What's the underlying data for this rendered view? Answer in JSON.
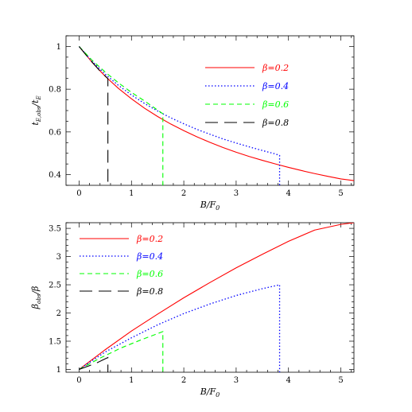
{
  "chart_data": [
    {
      "type": "line",
      "xlabel": "B/F",
      "xlabel_sub": "0",
      "ylabel": "t",
      "ylabel_sub": "E,obs",
      "ylabel_mid": "/t",
      "ylabel_sub2": "E",
      "xlim": [
        -0.25,
        5.25
      ],
      "ylim": [
        0.35,
        1.05
      ],
      "xticks": [
        "0",
        "1",
        "2",
        "3",
        "4",
        "5"
      ],
      "yticks": [
        "0.4",
        "0.6",
        "0.8",
        "1"
      ],
      "ytick_values": [
        0.4,
        0.6,
        0.8,
        1.0
      ],
      "legend_position": "top-right",
      "series": [
        {
          "name": "β=0.2",
          "color": "#ff0000",
          "dash": "solid",
          "x": [
            0,
            0.25,
            0.5,
            0.75,
            1,
            1.25,
            1.5,
            1.75,
            2,
            2.25,
            2.5,
            2.75,
            3,
            3.25,
            3.5,
            3.75,
            4,
            4.25,
            4.5,
            4.75,
            5,
            5.25
          ],
          "y": [
            1,
            0.925,
            0.86,
            0.804,
            0.755,
            0.711,
            0.672,
            0.637,
            0.606,
            0.577,
            0.551,
            0.527,
            0.505,
            0.485,
            0.467,
            0.45,
            0.434,
            0.419,
            0.405,
            0.392,
            0.38,
            0.372
          ]
        },
        {
          "name": "β=0.4",
          "color": "#0000ff",
          "dash": "dotted",
          "x": [
            0,
            0.25,
            0.5,
            0.75,
            1,
            1.25,
            1.5,
            1.75,
            2,
            2.25,
            2.5,
            2.75,
            3,
            3.25,
            3.5,
            3.75,
            3.83,
            3.83
          ],
          "y": [
            1,
            0.93,
            0.87,
            0.818,
            0.773,
            0.733,
            0.698,
            0.666,
            0.638,
            0.612,
            0.589,
            0.567,
            0.548,
            0.53,
            0.513,
            0.497,
            0.49,
            0.35
          ]
        },
        {
          "name": "β=0.6",
          "color": "#00ff00",
          "dash": "short-dash",
          "x": [
            0,
            0.25,
            0.5,
            0.75,
            1,
            1.25,
            1.6,
            1.6
          ],
          "y": [
            1,
            0.935,
            0.88,
            0.83,
            0.785,
            0.745,
            0.685,
            0.35
          ]
        },
        {
          "name": "β=0.8",
          "color": "#000000",
          "dash": "long-dash",
          "x": [
            0,
            0.2,
            0.4,
            0.55,
            0.55
          ],
          "y": [
            1,
            0.94,
            0.885,
            0.85,
            0.35
          ]
        }
      ]
    },
    {
      "type": "line",
      "xlabel": "B/F",
      "xlabel_sub": "0",
      "ylabel": "β",
      "ylabel_sub": "obs",
      "ylabel_mid": "/β",
      "ylabel_sub2": "",
      "xlim": [
        -0.25,
        5.25
      ],
      "ylim": [
        0.95,
        3.6
      ],
      "xticks": [
        "0",
        "1",
        "2",
        "3",
        "4",
        "5"
      ],
      "yticks": [
        "1",
        "1.5",
        "2",
        "2.5",
        "3",
        "3.5"
      ],
      "ytick_values": [
        1,
        1.5,
        2,
        2.5,
        3,
        3.5
      ],
      "legend_position": "top-left",
      "series": [
        {
          "name": "β=0.2",
          "color": "#ff0000",
          "dash": "solid",
          "x": [
            0,
            0.5,
            1,
            1.5,
            2,
            2.5,
            3,
            3.5,
            4,
            4.5,
            5,
            5.25
          ],
          "y": [
            1,
            1.35,
            1.68,
            1.98,
            2.27,
            2.54,
            2.8,
            3.04,
            3.27,
            3.47,
            3.57,
            3.6
          ]
        },
        {
          "name": "β=0.4",
          "color": "#0000ff",
          "dash": "dotted",
          "x": [
            0,
            0.5,
            1,
            1.5,
            2,
            2.5,
            3,
            3.5,
            3.83,
            3.83
          ],
          "y": [
            1,
            1.31,
            1.56,
            1.79,
            1.99,
            2.16,
            2.31,
            2.43,
            2.5,
            0.95
          ]
        },
        {
          "name": "β=0.6",
          "color": "#00ff00",
          "dash": "short-dash",
          "x": [
            0,
            0.4,
            0.8,
            1.2,
            1.6,
            1.6
          ],
          "y": [
            1,
            1.2,
            1.38,
            1.53,
            1.67,
            0.95
          ]
        },
        {
          "name": "β=0.8",
          "color": "#000000",
          "dash": "long-dash",
          "x": [
            0,
            0.3,
            0.55,
            0.55
          ],
          "y": [
            1,
            1.1,
            1.21,
            0.95
          ]
        }
      ]
    }
  ]
}
